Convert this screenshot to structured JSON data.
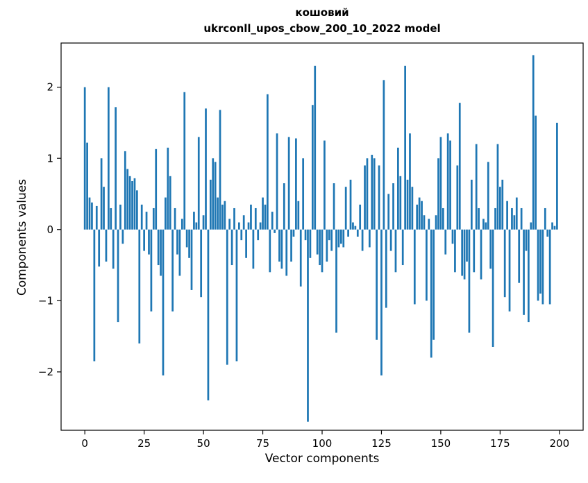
{
  "chart_data": {
    "type": "bar",
    "title": "кошовий",
    "subtitle": "ukrconll_upos_cbow_200_10_2022 model",
    "xlabel": "Vector components",
    "ylabel": "Components values",
    "legend": "none",
    "grid": false,
    "xlim": [
      -10,
      210
    ],
    "ylim": [
      -2.82,
      2.62
    ],
    "x_ticks": [
      0,
      25,
      50,
      75,
      100,
      125,
      150,
      175,
      200
    ],
    "x_tick_labels": [
      "0",
      "25",
      "50",
      "75",
      "100",
      "125",
      "150",
      "175",
      "200"
    ],
    "y_ticks": [
      -2,
      -1,
      0,
      1,
      2
    ],
    "y_tick_labels": [
      "−2",
      "−1",
      "0",
      "1",
      "2"
    ],
    "bar_color": "#1f77b4",
    "bar_width": 0.8,
    "x_start": 0,
    "values": [
      2.0,
      1.22,
      0.45,
      0.38,
      -1.85,
      0.33,
      -0.52,
      1.0,
      0.6,
      -0.45,
      2.0,
      0.3,
      -0.55,
      1.72,
      -1.3,
      0.35,
      -0.2,
      1.1,
      0.85,
      0.75,
      0.68,
      0.72,
      0.55,
      -1.6,
      0.35,
      -0.3,
      0.25,
      -0.35,
      -1.15,
      0.3,
      1.13,
      -0.5,
      -0.65,
      -2.05,
      0.45,
      1.15,
      0.75,
      -1.15,
      0.3,
      -0.35,
      -0.65,
      0.15,
      1.93,
      -0.25,
      -0.4,
      -0.85,
      0.25,
      0.1,
      1.3,
      -0.95,
      0.2,
      1.7,
      -2.4,
      0.7,
      1.0,
      0.95,
      0.45,
      1.68,
      0.35,
      0.4,
      -1.9,
      0.15,
      -0.5,
      0.3,
      -1.85,
      0.1,
      -0.15,
      0.2,
      -0.4,
      0.1,
      0.35,
      -0.55,
      0.3,
      -0.15,
      0.1,
      0.45,
      0.35,
      1.9,
      -0.6,
      0.25,
      -0.05,
      1.35,
      -0.45,
      -0.55,
      0.65,
      -0.65,
      1.3,
      -0.45,
      -0.1,
      1.28,
      0.4,
      -0.8,
      1.0,
      -0.15,
      -2.7,
      -0.4,
      1.75,
      2.3,
      -0.35,
      -0.5,
      -0.6,
      1.25,
      -0.45,
      -0.15,
      -0.3,
      0.65,
      -1.45,
      -0.25,
      -0.2,
      -0.25,
      0.6,
      -0.1,
      0.7,
      0.1,
      0.05,
      -0.1,
      0.35,
      -0.3,
      0.9,
      1.0,
      -0.25,
      1.05,
      1.0,
      -1.55,
      0.9,
      -2.05,
      2.1,
      -1.1,
      0.5,
      -0.3,
      0.65,
      -0.6,
      1.15,
      0.75,
      -0.5,
      2.3,
      0.7,
      1.35,
      0.6,
      -1.05,
      0.35,
      0.45,
      0.4,
      0.2,
      -1.0,
      0.15,
      -1.8,
      -1.55,
      0.2,
      1.0,
      1.3,
      0.3,
      -0.35,
      1.35,
      1.25,
      -0.2,
      -0.6,
      0.9,
      1.78,
      -0.65,
      -0.7,
      -0.45,
      -1.45,
      0.7,
      -0.6,
      1.2,
      0.3,
      -0.7,
      0.15,
      0.1,
      0.95,
      -0.55,
      -1.65,
      0.3,
      1.2,
      0.6,
      0.7,
      -0.95,
      0.4,
      -1.15,
      0.3,
      0.2,
      0.45,
      -0.75,
      0.3,
      -1.2,
      -0.3,
      -1.3,
      0.1,
      2.45,
      1.6,
      -1.0,
      -0.9,
      -1.05,
      0.3,
      -0.1,
      -1.05,
      0.1,
      0.05,
      1.5
    ]
  }
}
